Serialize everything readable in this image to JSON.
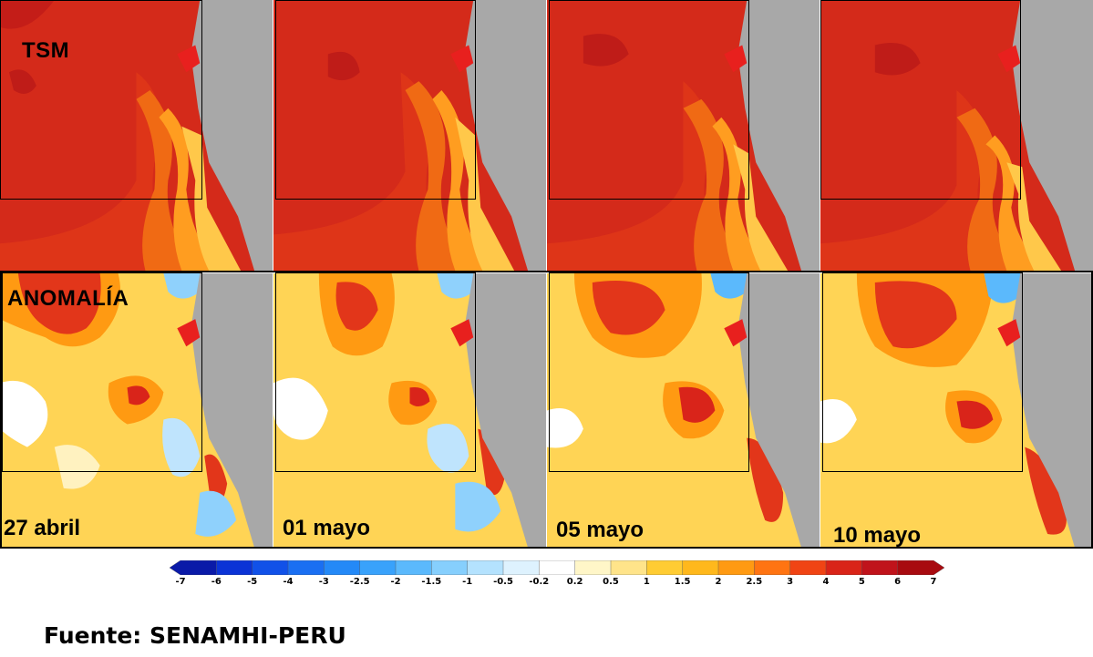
{
  "rows": {
    "top_label": "TSM",
    "bottom_label": "ANOMALÍA"
  },
  "dates": [
    "27 abril",
    "01 mayo",
    "05 mayo",
    "10 mayo"
  ],
  "colorbar": {
    "ticks": [
      "-7",
      "-6",
      "-5",
      "-4",
      "-3",
      "-2.5",
      "-2",
      "-1.5",
      "-1",
      "-0.5",
      "-0.2",
      "0.2",
      "0.5",
      "1",
      "1.5",
      "2",
      "2.5",
      "3",
      "4",
      "5",
      "6",
      "7"
    ],
    "colors": [
      "#0a1aa8",
      "#0b33d6",
      "#1151e8",
      "#1a6ff2",
      "#2489f7",
      "#39a2fb",
      "#5bb9fc",
      "#86cffd",
      "#b4e2fe",
      "#def2fe",
      "#ffffff",
      "#fff6c8",
      "#ffe48a",
      "#ffcc33",
      "#ffb81c",
      "#ff9a12",
      "#ff7412",
      "#f04414",
      "#d92418",
      "#c0131b",
      "#a80b10"
    ]
  },
  "colors": {
    "land": "#a8a8a8",
    "tsm_base": "#d92a1b",
    "anomaly_base": "#ffd45a"
  },
  "source": "Fuente: SENAMHI-PERU"
}
